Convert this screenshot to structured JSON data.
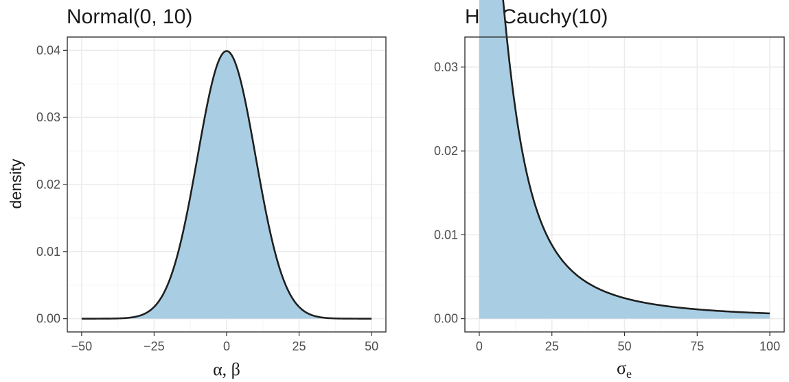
{
  "figure": {
    "ylabel": "density",
    "fill_color": "#a9cee3",
    "line_color": "#1f1f1f"
  },
  "chart_data": [
    {
      "type": "area",
      "title": "Normal(0, 10)",
      "distribution": "normal",
      "params": {
        "mean": 0,
        "sd": 10
      },
      "xlabel": "α, β",
      "ylabel": "density",
      "xlim": [
        -50,
        50
      ],
      "ylim": [
        0,
        0.04
      ],
      "x_ticks": [
        -50,
        -25,
        0,
        25,
        50
      ],
      "x_tick_labels": [
        "−50",
        "−25",
        "0",
        "25",
        "50"
      ],
      "y_ticks": [
        0,
        0.01,
        0.02,
        0.03,
        0.04
      ],
      "y_tick_labels": [
        "0.00",
        "0.01",
        "0.02",
        "0.03",
        "0.04"
      ],
      "x": [
        -50,
        -40,
        -30,
        -25,
        -20,
        -15,
        -10,
        -5,
        0,
        5,
        10,
        15,
        20,
        25,
        30,
        40,
        50
      ],
      "y": [
        0.0,
        0.0001,
        0.0004,
        0.0018,
        0.0054,
        0.013,
        0.0242,
        0.0352,
        0.0399,
        0.0352,
        0.0242,
        0.013,
        0.0054,
        0.0018,
        0.0004,
        0.0001,
        0.0
      ],
      "grid": true
    },
    {
      "type": "area",
      "title": "HalfCauchy(10)",
      "distribution": "half-cauchy",
      "params": {
        "scale": 10
      },
      "xlabel": "σ",
      "xlabel_subscript": "e",
      "ylabel": "",
      "xlim": [
        0,
        100
      ],
      "ylim": [
        0,
        0.032
      ],
      "x_ticks": [
        0,
        25,
        50,
        75,
        100
      ],
      "x_tick_labels": [
        "0",
        "25",
        "50",
        "75",
        "100"
      ],
      "y_ticks": [
        0,
        0.01,
        0.02,
        0.03
      ],
      "y_tick_labels": [
        "0.00",
        "0.01",
        "0.02",
        "0.03"
      ],
      "x": [
        0,
        2,
        5,
        10,
        15,
        20,
        25,
        30,
        40,
        50,
        60,
        75,
        100
      ],
      "y": [
        0.0318,
        0.0306,
        0.0255,
        0.0159,
        0.0098,
        0.0064,
        0.0044,
        0.0032,
        0.0019,
        0.0012,
        0.0009,
        0.0005,
        0.0003
      ],
      "grid": true
    }
  ]
}
